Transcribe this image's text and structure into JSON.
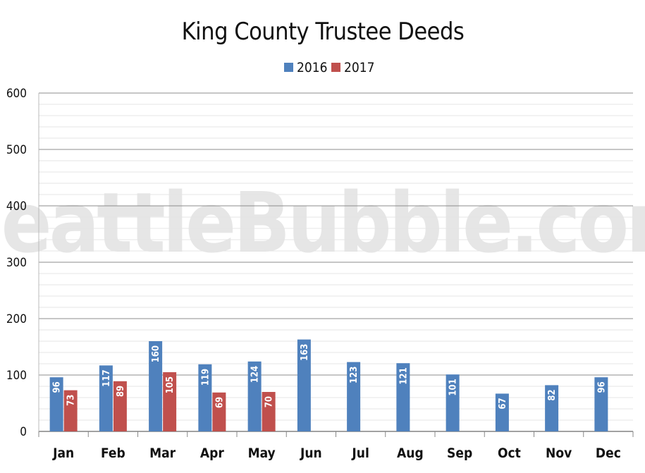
{
  "chart_data": {
    "type": "bar",
    "title": "King County Trustee Deeds",
    "watermark": "SeattleBubble.com",
    "categories": [
      "Jan",
      "Feb",
      "Mar",
      "Apr",
      "May",
      "Jun",
      "Jul",
      "Aug",
      "Sep",
      "Oct",
      "Nov",
      "Dec"
    ],
    "series": [
      {
        "name": "2016",
        "color": "#4f81bd",
        "values": [
          96,
          117,
          160,
          119,
          124,
          163,
          123,
          121,
          101,
          67,
          82,
          96
        ]
      },
      {
        "name": "2017",
        "color": "#c0504d",
        "values": [
          73,
          89,
          105,
          69,
          70,
          null,
          null,
          null,
          null,
          null,
          null,
          null
        ]
      }
    ],
    "ylim": [
      0,
      600
    ],
    "yticks": [
      0,
      100,
      200,
      300,
      400,
      500,
      600
    ],
    "grid": true,
    "legend": "top-center",
    "data_labels": true
  }
}
